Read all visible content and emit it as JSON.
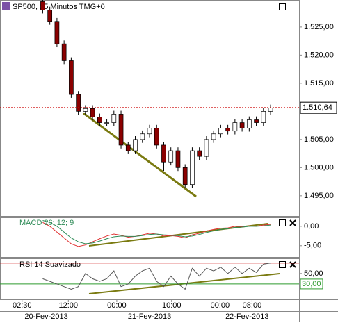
{
  "chart_data": [
    {
      "type": "candlestick",
      "title": "SP500, 15 Minutos TMG+0",
      "open": [
        1529.5,
        1528,
        1526,
        1522,
        1519,
        1513,
        1510,
        1510.5,
        1509,
        1508,
        1508,
        1509.5,
        1504,
        1503,
        1505,
        1506,
        1507,
        1504,
        1501,
        1503,
        1500,
        1497,
        1503,
        1502,
        1505,
        1506,
        1507,
        1506.5,
        1508,
        1507,
        1508.5,
        1508,
        1510
      ],
      "high": [
        1530,
        1528.6,
        1526.6,
        1522.6,
        1519.6,
        1513.6,
        1511.1,
        1511.1,
        1509.6,
        1508.6,
        1510.1,
        1510.1,
        1504.6,
        1505.6,
        1506.6,
        1507.6,
        1507.6,
        1504.6,
        1503.6,
        1503.6,
        1500.6,
        1503.6,
        1503.6,
        1505.6,
        1506.6,
        1507.6,
        1507.6,
        1508.6,
        1508.6,
        1509.1,
        1509.1,
        1510.6,
        1511.2
      ],
      "low": [
        1527.4,
        1525.4,
        1521.4,
        1518.4,
        1512.4,
        1509.4,
        1509.4,
        1508.4,
        1507.4,
        1507.4,
        1507.4,
        1503.4,
        1502.4,
        1502.4,
        1504.4,
        1505.4,
        1503.4,
        1499.4,
        1500.4,
        1499.4,
        1496.4,
        1496.4,
        1501.4,
        1501.4,
        1504.4,
        1505.4,
        1505.9,
        1505.9,
        1506.4,
        1506.4,
        1507.4,
        1507.4,
        1509.4
      ],
      "close": [
        1528,
        1526,
        1522,
        1519,
        1513,
        1510,
        1510.5,
        1509,
        1508,
        1508,
        1509.5,
        1504,
        1503,
        1505,
        1506,
        1507,
        1504,
        1501,
        1503,
        1500,
        1497,
        1503,
        1502,
        1505,
        1506,
        1507,
        1506.5,
        1508,
        1507,
        1508.5,
        1508,
        1510,
        1510.6
      ],
      "up_color": "#ffffff",
      "down_color": "#8b0000",
      "xlim": [
        -6,
        36
      ],
      "xticks": [
        {
          "value": -2.9,
          "label": "02:30"
        },
        {
          "value": 3.6,
          "label": "12:00"
        },
        {
          "value": 10.4,
          "label": "00:00"
        },
        {
          "value": 18.1,
          "label": "10:00"
        },
        {
          "value": 24.9,
          "label": "00:00"
        },
        {
          "value": 29.4,
          "label": "08:00"
        }
      ],
      "date_labels": [
        {
          "value": 0.5,
          "label": "20-Fev-2013"
        },
        {
          "value": 15,
          "label": "21-Fev-2013"
        },
        {
          "value": 28.7,
          "label": "22-Fev-2013"
        }
      ],
      "ylim": [
        1491.4,
        1529.8
      ],
      "yticks": [
        {
          "value": 1525,
          "label": "1.525,00"
        },
        {
          "value": 1520,
          "label": "1.520,00"
        },
        {
          "value": 1515,
          "label": "1.515,00"
        },
        {
          "value": 1505,
          "label": "1.505,00"
        },
        {
          "value": 1500,
          "label": "1.500,00"
        },
        {
          "value": 1495,
          "label": "1.495,00"
        }
      ],
      "hline": {
        "value": 1510.64,
        "label": "1.510,64",
        "color": "#cc0000"
      }
    },
    {
      "type": "line",
      "title": "MACD 26; 12; 9",
      "series": [
        {
          "color": "#e03030",
          "values": [
            1,
            0,
            -1.5,
            -3,
            -4.5,
            -5.2,
            -4.8,
            -4,
            -3.2,
            -2.5,
            -2,
            -2.3,
            -2.8,
            -2.6,
            -2.2,
            -1.8,
            -2,
            -2.5,
            -2.4,
            -2.6,
            -3,
            -2.2,
            -1.8,
            -1.2,
            -0.8,
            -0.5,
            -0.4,
            0,
            -0.1,
            0.1,
            0,
            0.3,
            0.5
          ]
        },
        {
          "color": "#2e8b57",
          "values": [
            1.5,
            1,
            0,
            -1.5,
            -3,
            -4,
            -4.5,
            -4.3,
            -3.8,
            -3.2,
            -2.7,
            -2.5,
            -2.6,
            -2.6,
            -2.4,
            -2.1,
            -2,
            -2.2,
            -2.3,
            -2.4,
            -2.7,
            -2.5,
            -2.1,
            -1.6,
            -1.2,
            -0.8,
            -0.6,
            -0.3,
            -0.2,
            0,
            0,
            0.1,
            0.3
          ]
        }
      ],
      "ylim": [
        -7.9,
        2.3
      ],
      "yticks": [
        {
          "value": 0,
          "label": "0,00"
        },
        {
          "value": -5,
          "label": "-5,00"
        }
      ]
    },
    {
      "type": "line",
      "title": "RSI 14 Suavizado",
      "series": [
        {
          "color": "#555555",
          "values": [
            40,
            35,
            30,
            25,
            20,
            25,
            50,
            40,
            35,
            40,
            55,
            25,
            30,
            45,
            55,
            60,
            35,
            25,
            45,
            30,
            20,
            60,
            45,
            60,
            55,
            62,
            50,
            62,
            50,
            60,
            52,
            68,
            70
          ]
        }
      ],
      "ylim": [
        2,
        79
      ],
      "yticks": [
        {
          "value": 50,
          "label": "50,00"
        }
      ],
      "levels": [
        {
          "value": 70,
          "color": "#cc0000"
        },
        {
          "value": 30,
          "label": "30,00",
          "color": "#2e9a2e"
        }
      ]
    }
  ]
}
